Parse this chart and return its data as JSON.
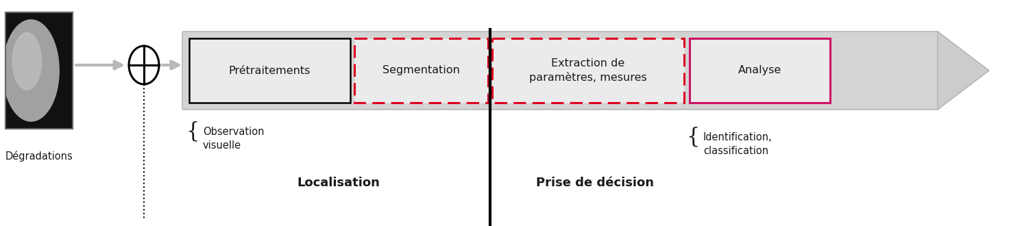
{
  "bg_color": "#ffffff",
  "arrow_gray": "#b8b8b8",
  "box_gray_bg": "#d4d4d4",
  "box_inner_gray": "#ebebeb",
  "black": "#000000",
  "dark_gray": "#444444",
  "red_dashed": "#dd0022",
  "pink_solid": "#cc1166",
  "text_color": "#1a1a1a",
  "label_degradations": "Dégradations",
  "label_observation": "Observation\nvisuelle",
  "label_localisation": "Localisation",
  "label_pretraitements": "Prétraitements",
  "label_segmentation": "Segmentation",
  "label_extraction": "Extraction de\nparamètres, mesures",
  "label_analyse": "Analyse",
  "label_decision": "Prise de décision",
  "label_identification": "Identification,\nclassification",
  "fig_w": 14.91,
  "fig_h": 3.3,
  "dpi": 100
}
